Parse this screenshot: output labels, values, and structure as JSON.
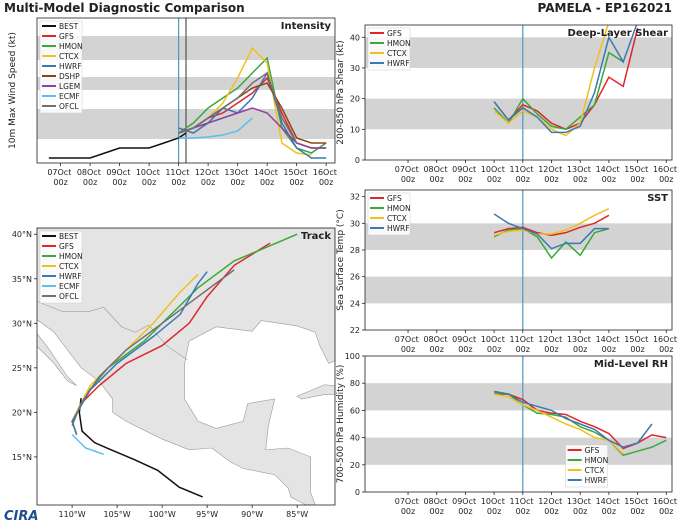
{
  "header": {
    "title": "Multi-Model Diagnostic Comparison",
    "storm": "PAMELA - EP162021",
    "logo": "CIRA"
  },
  "chart_data": [
    {
      "type": "line",
      "title": "Intensity",
      "ylabel": "10m Max Wind Speed (kt)",
      "xlim": [
        6.2,
        16.3
      ],
      "ylim": [
        10,
        155
      ],
      "xticks": [
        {
          "value": 7,
          "label": "07Oct 00z"
        },
        {
          "value": 8,
          "label": "08Oct 00z"
        },
        {
          "value": 9,
          "label": "09Oct 00z"
        },
        {
          "value": 10,
          "label": "10Oct 00z"
        },
        {
          "value": 11,
          "label": "11Oct 00z"
        },
        {
          "value": 12,
          "label": "12Oct 00z"
        },
        {
          "value": 13,
          "label": "13Oct 00z"
        },
        {
          "value": 14,
          "label": "14Oct 00z"
        },
        {
          "value": 15,
          "label": "15Oct 00z"
        },
        {
          "value": 16,
          "label": "16Oct 00z"
        }
      ],
      "bands": [
        [
          34,
          64
        ],
        [
          83,
          96
        ],
        [
          113,
          137
        ]
      ],
      "vlines": [
        {
          "value": 11.0,
          "color": "#4a9ac0"
        },
        {
          "value": 11.25,
          "color": "#555555"
        }
      ],
      "legend": "upper left",
      "x": [
        11.0,
        11.5,
        12.0,
        12.5,
        13.0,
        13.5,
        14.0,
        14.5,
        15.0,
        15.5,
        16.0
      ],
      "series": [
        {
          "name": "BEST",
          "color": "#111111",
          "x": [
            6.6,
            7.0,
            7.5,
            8.0,
            8.5,
            9.0,
            9.5,
            10.0,
            10.5,
            11.0,
            11.25
          ],
          "values": [
            15,
            15,
            15,
            15,
            20,
            25,
            25,
            25,
            30,
            35,
            40
          ]
        },
        {
          "name": "GFS",
          "color": "#e0262b",
          "values": [
            40,
            45,
            55,
            60,
            70,
            80,
            95,
            60,
            30,
            25,
            25
          ]
        },
        {
          "name": "HMON",
          "color": "#3aa83a",
          "values": [
            40,
            50,
            65,
            75,
            85,
            100,
            115,
            45,
            25,
            20,
            30
          ]
        },
        {
          "name": "CTCX",
          "color": "#f0c020",
          "values": [
            40,
            45,
            55,
            70,
            95,
            125,
            110,
            30,
            20,
            18,
            null
          ]
        },
        {
          "name": "HWRF",
          "color": "#3c78b4",
          "values": [
            45,
            40,
            50,
            65,
            60,
            75,
            100,
            50,
            25,
            15,
            15
          ]
        },
        {
          "name": "DSHP",
          "color": "#8b4513",
          "values": [
            40,
            45,
            55,
            65,
            75,
            85,
            90,
            65,
            35,
            30,
            30
          ]
        },
        {
          "name": "LGEM",
          "color": "#9040a0",
          "values": [
            40,
            45,
            50,
            55,
            60,
            65,
            60,
            45,
            30,
            25,
            25
          ]
        },
        {
          "name": "ECMF",
          "color": "#5bc0f0",
          "values": [
            35,
            35,
            36,
            38,
            42,
            55,
            null,
            null,
            null,
            null,
            null
          ]
        },
        {
          "name": "OFCL",
          "color": "#707070",
          "values": [
            40,
            45,
            55,
            65,
            75,
            90,
            100,
            55,
            30,
            null,
            null
          ]
        }
      ]
    },
    {
      "type": "map",
      "title": "Track",
      "xlim": [
        -113.9,
        -80.8
      ],
      "ylim": [
        9.6,
        40.7
      ],
      "xticks": [
        {
          "value": -110,
          "label": "110°W"
        },
        {
          "value": -105,
          "label": "105°W"
        },
        {
          "value": -100,
          "label": "100°W"
        },
        {
          "value": -95,
          "label": "95°W"
        },
        {
          "value": -90,
          "label": "90°W"
        },
        {
          "value": -85,
          "label": "85°W"
        }
      ],
      "yticks": [
        {
          "value": 15,
          "label": "15°N"
        },
        {
          "value": 20,
          "label": "20°N"
        },
        {
          "value": 25,
          "label": "25°N"
        },
        {
          "value": 30,
          "label": "30°N"
        },
        {
          "value": 35,
          "label": "35°N"
        },
        {
          "value": 40,
          "label": "40°N"
        }
      ],
      "legend": "upper left",
      "series": [
        {
          "name": "BEST",
          "color": "#111111",
          "x": [
            -95.5,
            -98.1,
            -100.5,
            -103.1,
            -105.9,
            -107.5,
            -108.9,
            -109.2,
            -109.0
          ],
          "values": [
            10.5,
            11.6,
            13.5,
            14.7,
            15.9,
            16.6,
            17.9,
            20.0,
            21.6
          ]
        },
        {
          "name": "GFS",
          "color": "#e0262b",
          "x": [
            -109.5,
            -110,
            -109,
            -107,
            -104,
            -100,
            -97,
            -95,
            -92,
            -88
          ],
          "values": [
            17.5,
            19,
            21,
            23,
            25.5,
            27.5,
            30,
            33,
            36.5,
            39
          ]
        },
        {
          "name": "HMON",
          "color": "#3aa83a",
          "x": [
            -109.5,
            -110,
            -108.5,
            -106,
            -102,
            -99,
            -96,
            -92,
            -85
          ],
          "values": [
            17.5,
            19,
            22,
            25,
            28,
            31,
            34,
            37,
            40
          ]
        },
        {
          "name": "CTCX",
          "color": "#f0c020",
          "x": [
            -109.5,
            -110,
            -108,
            -104,
            -101,
            -98,
            -96
          ],
          "values": [
            17.5,
            19,
            23,
            27,
            30,
            33.5,
            35.5
          ]
        },
        {
          "name": "HWRF",
          "color": "#3c78b4",
          "x": [
            -109.5,
            -110,
            -108,
            -105,
            -101,
            -98,
            -96,
            -95
          ],
          "values": [
            17.5,
            19,
            22.5,
            25.5,
            28.5,
            31,
            34.5,
            35.8
          ]
        },
        {
          "name": "ECMF",
          "color": "#5bc0f0",
          "x": [
            -110,
            -108.5,
            -106.5
          ],
          "values": [
            17.5,
            16,
            15.3
          ]
        },
        {
          "name": "OFCL",
          "color": "#707070",
          "x": [
            -110,
            -109,
            -107,
            -104,
            -100,
            -96,
            -92
          ],
          "values": [
            18.5,
            21,
            24,
            27,
            30,
            33,
            36
          ]
        }
      ]
    },
    {
      "type": "line",
      "title": "Deep-Layer Shear",
      "ylabel": "200-850 hPa Shear (kt)",
      "xlim": [
        5.5,
        16.2
      ],
      "ylim": [
        0,
        44
      ],
      "yticks": [
        0,
        10,
        20,
        30,
        40
      ],
      "xticks": [
        {
          "value": 7,
          "label": "07Oct 00z"
        },
        {
          "value": 8,
          "label": "08Oct 00z"
        },
        {
          "value": 9,
          "label": "09Oct 00z"
        },
        {
          "value": 10,
          "label": "10Oct 00z"
        },
        {
          "value": 11,
          "label": "11Oct 00z"
        },
        {
          "value": 12,
          "label": "12Oct 00z"
        },
        {
          "value": 13,
          "label": "13Oct 00z"
        },
        {
          "value": 14,
          "label": "14Oct 00z"
        },
        {
          "value": 15,
          "label": "15Oct 00z"
        },
        {
          "value": 16,
          "label": "16Oct 00z"
        }
      ],
      "bands": [
        [
          10,
          20
        ],
        [
          30,
          40
        ]
      ],
      "vlines": [
        {
          "value": 11.0,
          "color": "#4a9ac0"
        }
      ],
      "legend": "upper left",
      "x": [
        10.0,
        10.5,
        11.0,
        11.5,
        12.0,
        12.5,
        13.0,
        13.5,
        14.0,
        14.5,
        15.0
      ],
      "series": [
        {
          "name": "GFS",
          "color": "#e0262b",
          "values": [
            19,
            13,
            18,
            16,
            12,
            10,
            12,
            18,
            27,
            24,
            43
          ]
        },
        {
          "name": "HMON",
          "color": "#3aa83a",
          "values": [
            17,
            12,
            20,
            15,
            11,
            10,
            14,
            18,
            35,
            32,
            null
          ]
        },
        {
          "name": "CTCX",
          "color": "#f0c020",
          "values": [
            16,
            12,
            16,
            14,
            10,
            8,
            12,
            30,
            45,
            null,
            null
          ]
        },
        {
          "name": "HWRF",
          "color": "#3c78b4",
          "values": [
            19,
            13,
            17,
            14,
            9,
            9,
            11,
            22,
            40,
            32,
            45
          ]
        }
      ]
    },
    {
      "type": "line",
      "title": "SST",
      "ylabel": "Sea Surface Temp (°C)",
      "xlim": [
        5.5,
        16.2
      ],
      "ylim": [
        22,
        32.5
      ],
      "yticks": [
        22,
        24,
        26,
        28,
        30,
        32
      ],
      "xticks": [
        {
          "value": 7,
          "label": "07Oct 00z"
        },
        {
          "value": 8,
          "label": "08Oct 00z"
        },
        {
          "value": 9,
          "label": "09Oct 00z"
        },
        {
          "value": 10,
          "label": "10Oct 00z"
        },
        {
          "value": 11,
          "label": "11Oct 00z"
        },
        {
          "value": 12,
          "label": "12Oct 00z"
        },
        {
          "value": 13,
          "label": "13Oct 00z"
        },
        {
          "value": 14,
          "label": "14Oct 00z"
        },
        {
          "value": 15,
          "label": "15Oct 00z"
        },
        {
          "value": 16,
          "label": "16Oct 00z"
        }
      ],
      "bands": [
        [
          24,
          26
        ],
        [
          28,
          30
        ]
      ],
      "vlines": [
        {
          "value": 11.0,
          "color": "#4a9ac0"
        }
      ],
      "legend": "upper left",
      "x": [
        10.0,
        10.5,
        11.0,
        11.5,
        12.0,
        12.5,
        13.0,
        13.5,
        14.0
      ],
      "series": [
        {
          "name": "GFS",
          "color": "#e0262b",
          "values": [
            29.3,
            29.6,
            29.7,
            29.3,
            29.1,
            29.3,
            29.7,
            30.0,
            30.6
          ]
        },
        {
          "name": "HMON",
          "color": "#3aa83a",
          "values": [
            29.0,
            29.5,
            29.6,
            29.0,
            27.4,
            28.6,
            27.6,
            29.3,
            29.6
          ]
        },
        {
          "name": "CTCX",
          "color": "#f0c020",
          "values": [
            29.1,
            29.4,
            29.5,
            29.2,
            29.2,
            29.5,
            30.0,
            30.6,
            31.1
          ]
        },
        {
          "name": "HWRF",
          "color": "#3c78b4",
          "values": [
            30.7,
            30.0,
            29.6,
            29.2,
            28.1,
            28.5,
            28.5,
            29.6,
            29.6
          ]
        }
      ]
    },
    {
      "type": "line",
      "title": "Mid-Level RH",
      "ylabel": "700-500 hPa Humidity (%)",
      "xlim": [
        5.5,
        16.2
      ],
      "ylim": [
        0,
        100
      ],
      "yticks": [
        0,
        20,
        40,
        60,
        80,
        100
      ],
      "xticks": [
        {
          "value": 7,
          "label": "07Oct 00z"
        },
        {
          "value": 8,
          "label": "08Oct 00z"
        },
        {
          "value": 9,
          "label": "09Oct 00z"
        },
        {
          "value": 10,
          "label": "10Oct 00z"
        },
        {
          "value": 11,
          "label": "11Oct 00z"
        },
        {
          "value": 12,
          "label": "12Oct 00z"
        },
        {
          "value": 13,
          "label": "13Oct 00z"
        },
        {
          "value": 14,
          "label": "14Oct 00z"
        },
        {
          "value": 15,
          "label": "15Oct 00z"
        },
        {
          "value": 16,
          "label": "16Oct 00z"
        }
      ],
      "bands": [
        [
          20,
          40
        ],
        [
          60,
          80
        ]
      ],
      "vlines": [
        {
          "value": 11.0,
          "color": "#4a9ac0"
        }
      ],
      "legend": "lower center",
      "x": [
        10.0,
        10.5,
        11.0,
        11.5,
        12.0,
        12.5,
        13.0,
        13.5,
        14.0,
        14.5,
        15.0,
        15.5,
        16.0
      ],
      "series": [
        {
          "name": "GFS",
          "color": "#e0262b",
          "values": [
            72,
            72,
            68,
            60,
            58,
            57,
            52,
            48,
            43,
            32,
            36,
            42,
            40
          ]
        },
        {
          "name": "HMON",
          "color": "#3aa83a",
          "values": [
            73,
            72,
            64,
            58,
            57,
            55,
            48,
            44,
            38,
            27,
            30,
            33,
            38
          ]
        },
        {
          "name": "CTCX",
          "color": "#f0c020",
          "values": [
            72,
            70,
            64,
            60,
            55,
            50,
            46,
            40,
            38,
            28,
            null,
            null,
            null
          ]
        },
        {
          "name": "HWRF",
          "color": "#3c78b4",
          "values": [
            74,
            72,
            66,
            63,
            60,
            54,
            50,
            46,
            38,
            33,
            36,
            50,
            null
          ]
        }
      ]
    }
  ]
}
